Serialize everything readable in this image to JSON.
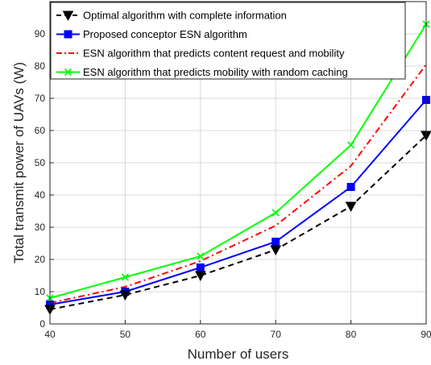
{
  "chart_data": {
    "type": "line",
    "title": "",
    "xlabel": "Number of users",
    "ylabel": "Total transmit power of UAVs (W)",
    "xlim": [
      40,
      90
    ],
    "ylim": [
      0,
      100
    ],
    "x": [
      40,
      50,
      60,
      70,
      80,
      90
    ],
    "xticks": [
      "40",
      "50",
      "60",
      "70",
      "80",
      "90"
    ],
    "yticks": [
      "0",
      "10",
      "20",
      "30",
      "40",
      "50",
      "60",
      "70",
      "80",
      "90"
    ],
    "grid": true,
    "legend_position": "top-left",
    "series": [
      {
        "name": "Optimal algorithm with complete information",
        "values": [
          4.5,
          9.0,
          15.0,
          23.0,
          36.5,
          58.5
        ],
        "color": "#000000",
        "line_style": "dashed",
        "marker": "triangle-down"
      },
      {
        "name": "Proposed conceptor ESN algorithm",
        "values": [
          6.0,
          10.0,
          17.5,
          25.5,
          42.5,
          69.5
        ],
        "color": "#0000ff",
        "line_style": "solid",
        "marker": "square"
      },
      {
        "name": "ESN algorithm that predicts content request and mobility",
        "values": [
          6.5,
          11.5,
          19.5,
          30.5,
          49.0,
          80.5
        ],
        "color": "#ff0000",
        "line_style": "dash-dot",
        "marker": "none"
      },
      {
        "name": "ESN algorithm that predicts mobility with random caching",
        "values": [
          8.0,
          14.5,
          21.0,
          34.5,
          55.5,
          93.0
        ],
        "color": "#00ff00",
        "line_style": "solid",
        "marker": "x"
      }
    ]
  }
}
